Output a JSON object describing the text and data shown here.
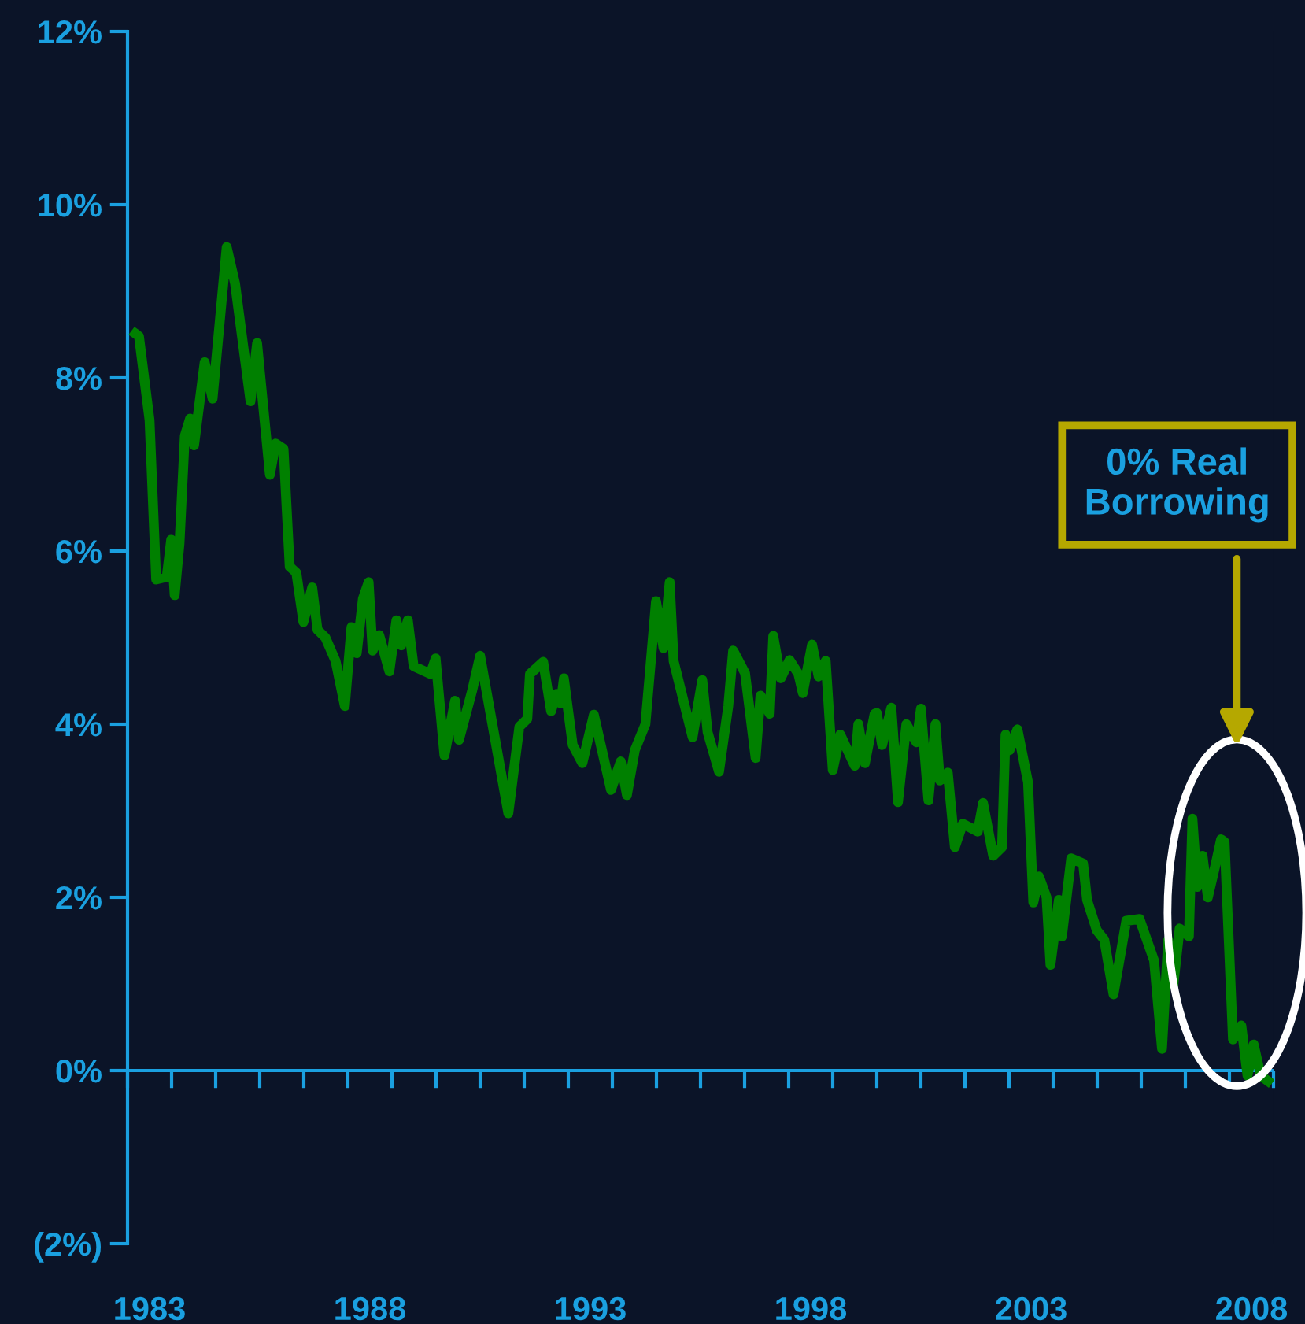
{
  "chart_data": {
    "type": "line",
    "x": [
      1983.18,
      1983.26,
      1983.5,
      1983.65,
      1983.89,
      1983.99,
      1984.07,
      1984.18,
      1984.3,
      1984.42,
      1984.51,
      1984.75,
      1984.93,
      1985.25,
      1985.44,
      1985.79,
      1985.94,
      1986.23,
      1986.36,
      1986.54,
      1986.68,
      1986.83,
      1986.99,
      1987.19,
      1987.31,
      1987.49,
      1987.72,
      1987.93,
      1988.08,
      1988.2,
      1988.34,
      1988.47,
      1988.56,
      1988.71,
      1988.94,
      1989.1,
      1989.21,
      1989.36,
      1989.49,
      1989.87,
      1989.99,
      1990.19,
      1990.43,
      1990.52,
      1990.82,
      1991.0,
      1991.64,
      1991.89,
      1992.07,
      1992.13,
      1992.43,
      1992.61,
      1992.73,
      1992.83,
      1992.9,
      1993.1,
      1993.32,
      1993.58,
      1993.97,
      1994.19,
      1994.33,
      1994.51,
      1994.75,
      1994.99,
      1995.16,
      1995.3,
      1995.39,
      1995.82,
      1996.04,
      1996.16,
      1996.42,
      1996.63,
      1996.74,
      1997.01,
      1997.25,
      1997.36,
      1997.57,
      1997.65,
      1997.82,
      1998.02,
      1998.22,
      1998.32,
      1998.53,
      1998.68,
      1998.84,
      1999.0,
      1999.17,
      1999.5,
      1999.58,
      1999.73,
      1999.95,
      2000.0,
      2000.12,
      2000.33,
      2000.48,
      2000.67,
      2000.9,
      2001.0,
      2001.17,
      2001.33,
      2001.43,
      2001.61,
      2001.77,
      2001.95,
      2002.29,
      2002.41,
      2002.64,
      2002.84,
      2002.92,
      2003.01,
      2003.19,
      2003.43,
      2003.55,
      2003.68,
      2003.85,
      2003.94,
      2004.13,
      2004.2,
      2004.41,
      2004.68,
      2004.77,
      2004.99,
      2005.16,
      2005.37,
      2005.66,
      2005.96,
      2006.29,
      2006.47,
      2006.61,
      2006.73,
      2006.87,
      2007.08,
      2007.16,
      2007.27,
      2007.39,
      2007.51,
      2007.69,
      2007.81,
      2007.89,
      2008.08,
      2008.27,
      2008.41,
      2008.55,
      2008.71,
      2008.87
    ],
    "series": [
      {
        "color": "#008000",
        "values": [
          8.51,
          8.48,
          7.51,
          5.67,
          5.7,
          6.13,
          5.49,
          6.09,
          7.33,
          7.53,
          7.22,
          8.18,
          7.76,
          9.51,
          9.09,
          7.73,
          8.4,
          6.88,
          7.24,
          7.18,
          5.82,
          5.75,
          5.18,
          5.58,
          5.09,
          5.0,
          4.73,
          4.21,
          5.12,
          4.82,
          5.45,
          5.64,
          4.85,
          5.03,
          4.61,
          5.2,
          4.91,
          5.2,
          4.67,
          4.58,
          4.76,
          3.64,
          4.27,
          3.82,
          4.39,
          4.79,
          2.97,
          3.97,
          4.06,
          4.58,
          4.72,
          4.15,
          4.35,
          4.24,
          4.53,
          3.76,
          3.55,
          4.11,
          3.24,
          3.57,
          3.18,
          3.7,
          4.0,
          5.42,
          4.88,
          5.64,
          4.73,
          3.85,
          4.51,
          3.91,
          3.45,
          4.21,
          4.85,
          4.59,
          3.61,
          4.33,
          4.12,
          5.02,
          4.53,
          4.74,
          4.58,
          4.36,
          4.92,
          4.55,
          4.73,
          3.47,
          3.88,
          3.52,
          4.0,
          3.55,
          4.12,
          4.13,
          3.76,
          4.19,
          3.1,
          4.0,
          3.79,
          4.18,
          3.12,
          4.0,
          3.35,
          3.44,
          2.58,
          2.85,
          2.76,
          3.09,
          2.48,
          2.58,
          3.88,
          3.7,
          3.94,
          3.33,
          1.94,
          2.24,
          2.0,
          1.22,
          1.97,
          1.55,
          2.45,
          2.39,
          1.97,
          1.62,
          1.51,
          0.88,
          1.73,
          1.75,
          1.27,
          0.25,
          1.51,
          1.0,
          1.64,
          1.55,
          2.91,
          2.12,
          2.48,
          2.0,
          2.39,
          2.67,
          2.64,
          0.36,
          0.52,
          -0.06,
          0.3,
          -0.06,
          -0.12
        ]
      }
    ],
    "xlim": [
      1983,
      2009
    ],
    "ylim": [
      -2,
      12
    ],
    "xticks": [
      {
        "value": 1983,
        "label": null
      },
      {
        "value": 1984,
        "label": null
      },
      {
        "value": 1985,
        "label": null
      },
      {
        "value": 1986,
        "label": null
      },
      {
        "value": 1987,
        "label": null
      },
      {
        "value": 1988,
        "label": null
      },
      {
        "value": 1989,
        "label": null
      },
      {
        "value": 1990,
        "label": null
      },
      {
        "value": 1991,
        "label": null
      },
      {
        "value": 1992,
        "label": null
      },
      {
        "value": 1993,
        "label": null
      },
      {
        "value": 1994,
        "label": null
      },
      {
        "value": 1995,
        "label": null
      },
      {
        "value": 1996,
        "label": null
      },
      {
        "value": 1997,
        "label": null
      },
      {
        "value": 1998,
        "label": null
      },
      {
        "value": 1999,
        "label": null
      },
      {
        "value": 2000,
        "label": null
      },
      {
        "value": 2001,
        "label": null
      },
      {
        "value": 2002,
        "label": null
      },
      {
        "value": 2003,
        "label": null
      },
      {
        "value": 2004,
        "label": null
      },
      {
        "value": 2005,
        "label": null
      },
      {
        "value": 2006,
        "label": null
      },
      {
        "value": 2007,
        "label": null
      },
      {
        "value": 2008,
        "label": null
      },
      {
        "value": 2009,
        "label": null
      },
      {
        "value": 1983.5,
        "label": "1983"
      },
      {
        "value": 1988.5,
        "label": "1988"
      },
      {
        "value": 1993.5,
        "label": "1993"
      },
      {
        "value": 1998.5,
        "label": "1998"
      },
      {
        "value": 2003.5,
        "label": "2003"
      },
      {
        "value": 2008.5,
        "label": "2008"
      }
    ],
    "yticks": [
      {
        "value": -2,
        "label": "(2%)"
      },
      {
        "value": 0,
        "label": "0%"
      },
      {
        "value": 2,
        "label": "2%"
      },
      {
        "value": 4,
        "label": "4%"
      },
      {
        "value": 6,
        "label": "6%"
      },
      {
        "value": 8,
        "label": "8%"
      },
      {
        "value": 10,
        "label": "10%"
      },
      {
        "value": 12,
        "label": "12%"
      }
    ],
    "annotations": [
      "0% Real\nBorrowing"
    ],
    "ref_lines": [
      {
        "axis": "y",
        "value": 0,
        "label": null,
        "color": "#1aa0e0"
      }
    ],
    "grid": false,
    "marker": "none",
    "line_style": "solid"
  }
}
